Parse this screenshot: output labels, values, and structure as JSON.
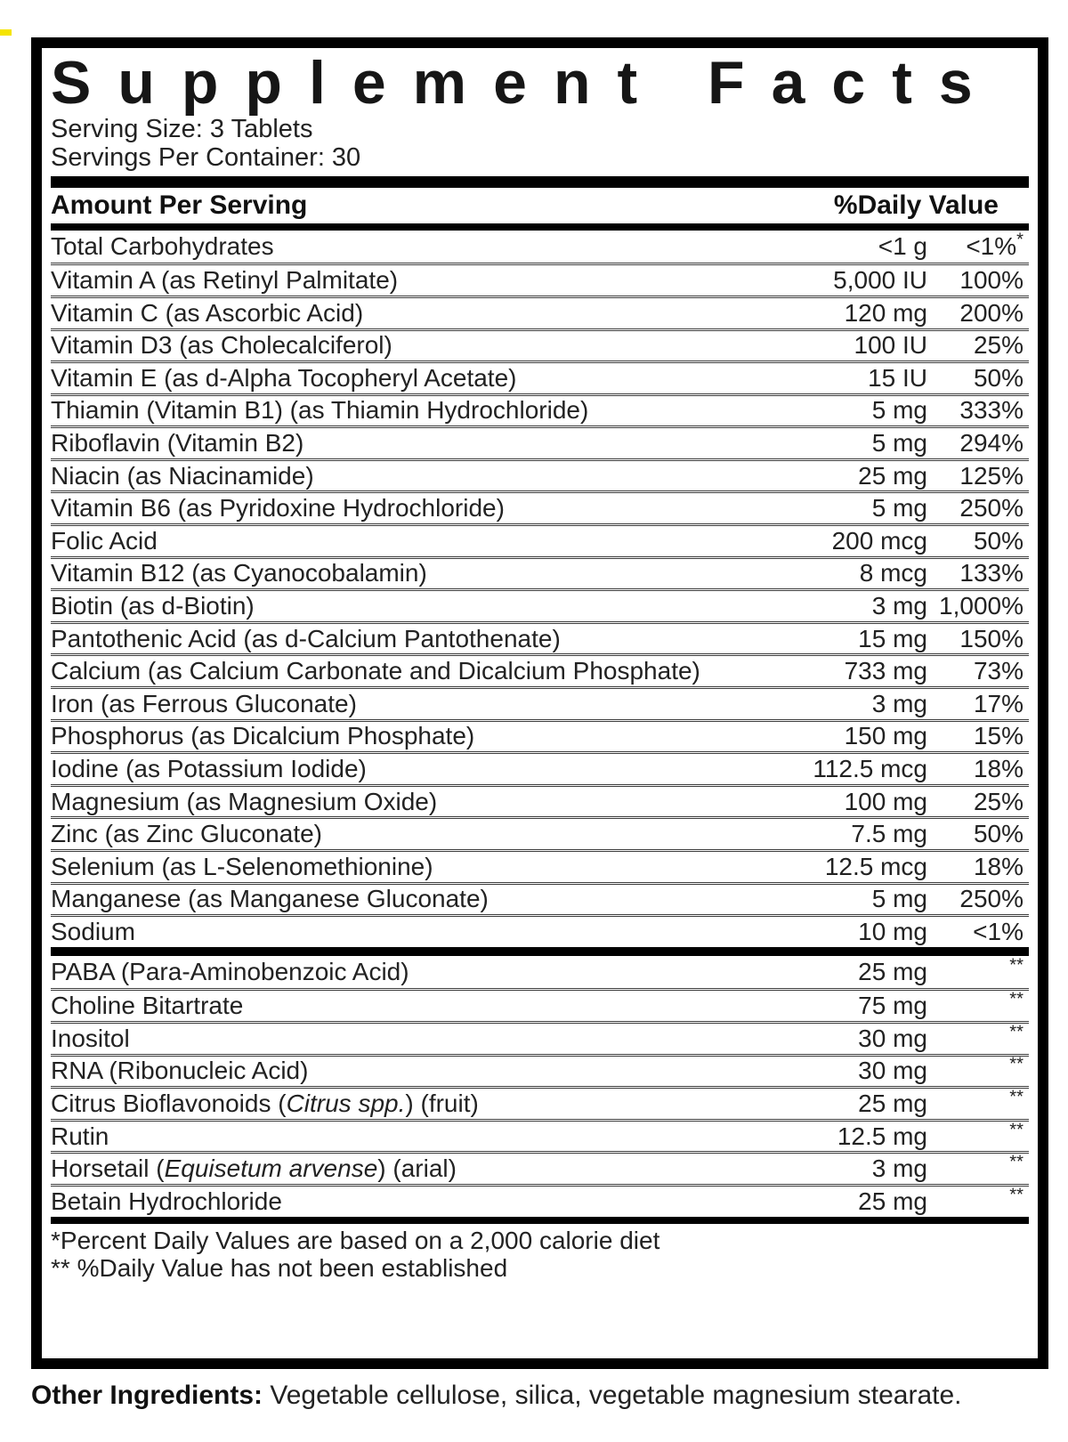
{
  "colors": {
    "background": "#ffffff",
    "text": "#1d1d1d",
    "bar": "#000000",
    "separator": "#3c3c3c",
    "artifact_yellow": "#f5e400"
  },
  "label": {
    "title": "Supplement Facts",
    "serving_size": "Serving Size: 3 Tablets",
    "servings_per_container": "Servings Per Container: 30",
    "header": {
      "left": "Amount Per Serving",
      "right": "%Daily Value"
    },
    "main_rows": [
      {
        "name": [
          {
            "t": "Total Carbohydrates"
          }
        ],
        "amount": "<1 g",
        "dv": "<1%*"
      },
      {
        "name": [
          {
            "t": "Vitamin A (as Retinyl Palmitate)"
          }
        ],
        "amount": "5,000 IU",
        "dv": "100%"
      },
      {
        "name": [
          {
            "t": "Vitamin C (as Ascorbic Acid)"
          }
        ],
        "amount": "120 mg",
        "dv": "200%"
      },
      {
        "name": [
          {
            "t": "Vitamin D3 (as Cholecalciferol)"
          }
        ],
        "amount": "100 IU",
        "dv": "25%"
      },
      {
        "name": [
          {
            "t": "Vitamin E (as d-Alpha Tocopheryl Acetate)"
          }
        ],
        "amount": "15 IU",
        "dv": "50%"
      },
      {
        "name": [
          {
            "t": "Thiamin (Vitamin B1) (as Thiamin Hydrochloride)"
          }
        ],
        "amount": "5 mg",
        "dv": "333%"
      },
      {
        "name": [
          {
            "t": "Riboflavin (Vitamin B2)"
          }
        ],
        "amount": "5 mg",
        "dv": "294%"
      },
      {
        "name": [
          {
            "t": "Niacin (as Niacinamide)"
          }
        ],
        "amount": "25 mg",
        "dv": "125%"
      },
      {
        "name": [
          {
            "t": "Vitamin B6 (as Pyridoxine Hydrochloride)"
          }
        ],
        "amount": "5 mg",
        "dv": "250%"
      },
      {
        "name": [
          {
            "t": "Folic Acid"
          }
        ],
        "amount": "200 mcg",
        "dv": "50%"
      },
      {
        "name": [
          {
            "t": "Vitamin B12 (as Cyanocobalamin)"
          }
        ],
        "amount": "8 mcg",
        "dv": "133%"
      },
      {
        "name": [
          {
            "t": "Biotin (as d-Biotin)"
          }
        ],
        "amount": "3 mg",
        "dv": "1,000%"
      },
      {
        "name": [
          {
            "t": "Pantothenic Acid (as d-Calcium Pantothenate)"
          }
        ],
        "amount": "15 mg",
        "dv": "150%"
      },
      {
        "name": [
          {
            "t": "Calcium (as Calcium Carbonate and Dicalcium Phosphate)"
          }
        ],
        "amount": "733 mg",
        "dv": "73%"
      },
      {
        "name": [
          {
            "t": "Iron (as Ferrous Gluconate)"
          }
        ],
        "amount": "3 mg",
        "dv": "17%"
      },
      {
        "name": [
          {
            "t": "Phosphorus (as Dicalcium Phosphate)"
          }
        ],
        "amount": "150 mg",
        "dv": "15%"
      },
      {
        "name": [
          {
            "t": "Iodine (as Potassium Iodide)"
          }
        ],
        "amount": "112.5 mcg",
        "dv": "18%"
      },
      {
        "name": [
          {
            "t": "Magnesium (as Magnesium Oxide)"
          }
        ],
        "amount": "100 mg",
        "dv": "25%"
      },
      {
        "name": [
          {
            "t": "Zinc (as Zinc Gluconate)"
          }
        ],
        "amount": "7.5 mg",
        "dv": "50%"
      },
      {
        "name": [
          {
            "t": "Selenium (as L-Selenomethionine)"
          }
        ],
        "amount": "12.5 mcg",
        "dv": "18%"
      },
      {
        "name": [
          {
            "t": "Manganese (as Manganese Gluconate)"
          }
        ],
        "amount": "5 mg",
        "dv": "250%"
      },
      {
        "name": [
          {
            "t": "Sodium"
          }
        ],
        "amount": "10 mg",
        "dv": "<1%"
      }
    ],
    "secondary_rows": [
      {
        "name": [
          {
            "t": "PABA (Para-Aminobenzoic Acid)"
          }
        ],
        "amount": "25 mg",
        "dv": "**"
      },
      {
        "name": [
          {
            "t": "Choline Bitartrate"
          }
        ],
        "amount": "75 mg",
        "dv": "**"
      },
      {
        "name": [
          {
            "t": "Inositol"
          }
        ],
        "amount": "30 mg",
        "dv": "**"
      },
      {
        "name": [
          {
            "t": "RNA (Ribonucleic Acid)"
          }
        ],
        "amount": "30 mg",
        "dv": "**"
      },
      {
        "name": [
          {
            "t": "Citrus Bioflavonoids ("
          },
          {
            "t": "Citrus spp.",
            "i": true
          },
          {
            "t": ") (fruit)"
          }
        ],
        "amount": "25 mg",
        "dv": "**"
      },
      {
        "name": [
          {
            "t": "Rutin"
          }
        ],
        "amount": "12.5 mg",
        "dv": "**"
      },
      {
        "name": [
          {
            "t": "Horsetail ("
          },
          {
            "t": "Equisetum arvense",
            "i": true
          },
          {
            "t": ") (arial)"
          }
        ],
        "amount": "3 mg",
        "dv": "**"
      },
      {
        "name": [
          {
            "t": "Betain Hydrochloride"
          }
        ],
        "amount": "25 mg",
        "dv": "**"
      }
    ],
    "footnotes": [
      "*Percent Daily Values are based on a 2,000 calorie diet",
      "** %Daily Value has not been established"
    ]
  },
  "other_ingredients": {
    "label": "Other Ingredients:",
    "text": " Vegetable cellulose, silica, vegetable magnesium stearate."
  }
}
